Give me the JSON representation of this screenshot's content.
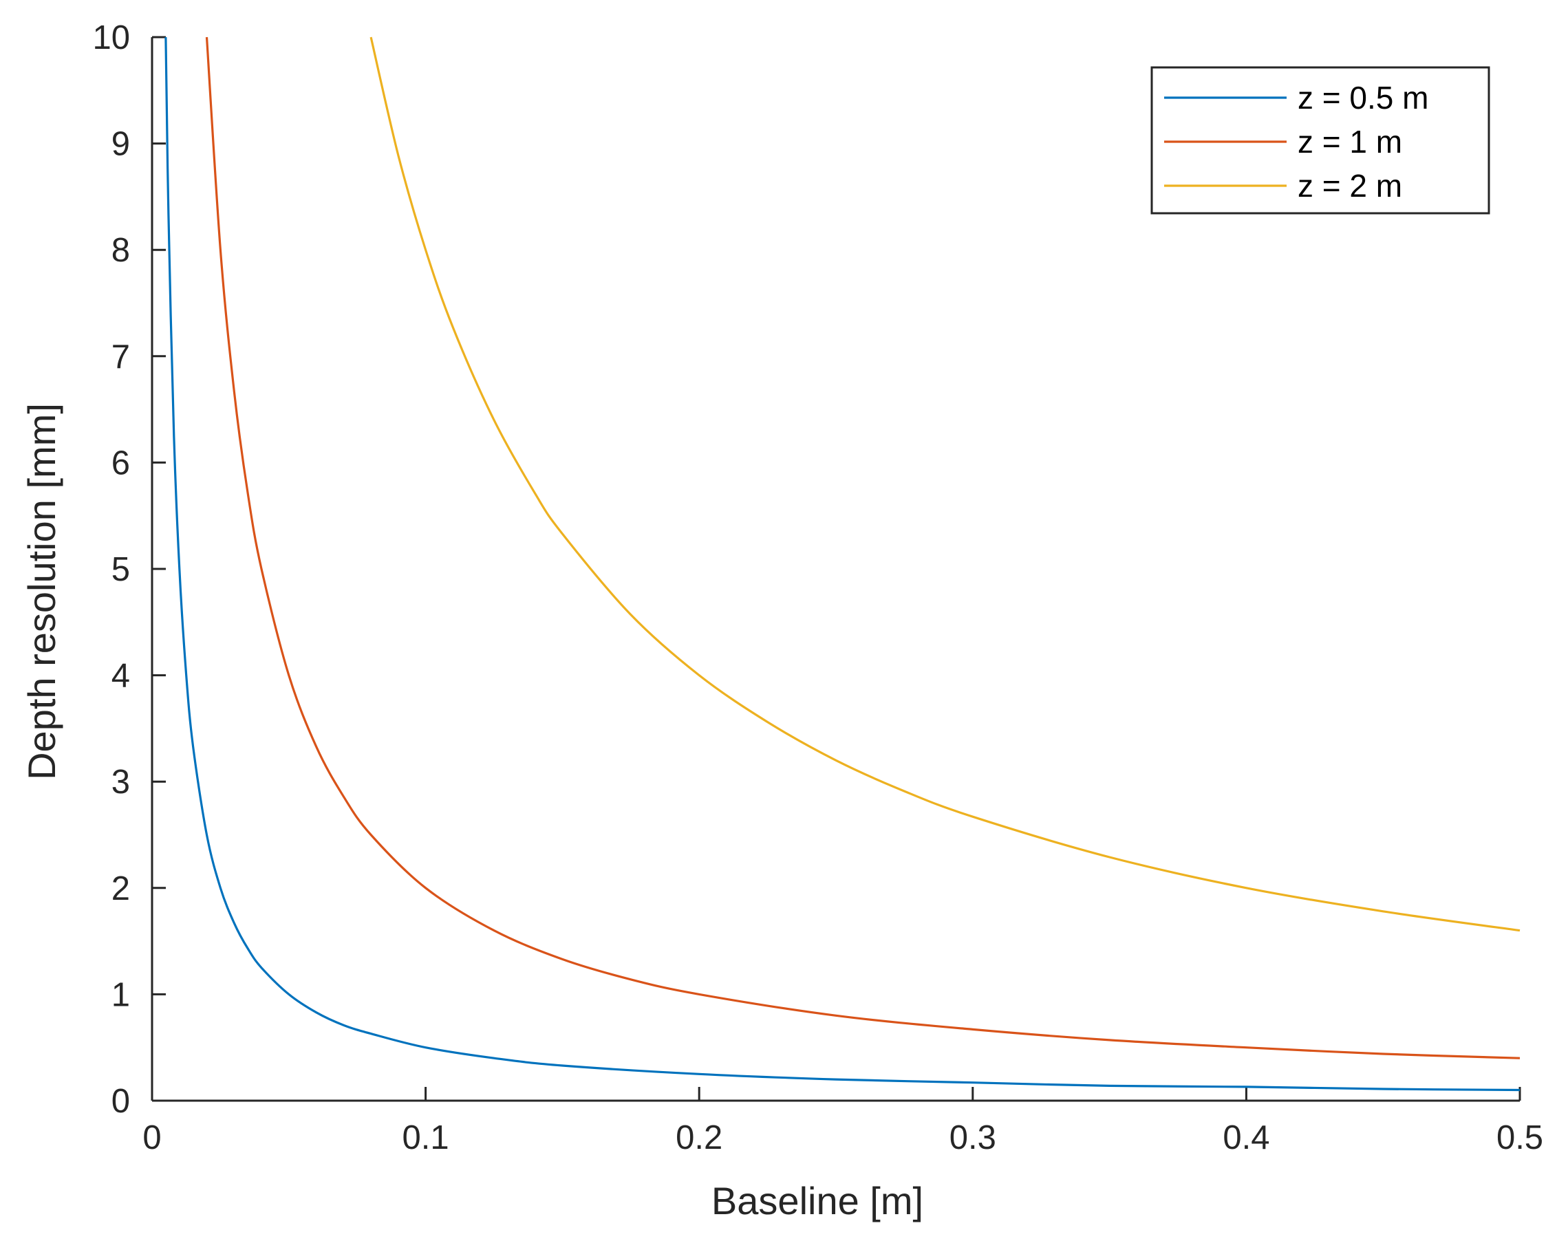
{
  "chart_data": {
    "type": "line",
    "title": "",
    "xlabel": "Baseline [m]",
    "ylabel": "Depth resolution [mm]",
    "xlim": [
      0,
      0.5
    ],
    "ylim": [
      0,
      10
    ],
    "xticks": [
      0,
      0.1,
      0.2,
      0.3,
      0.4,
      0.5
    ],
    "xtick_labels": [
      "0",
      "0.1",
      "0.2",
      "0.3",
      "0.4",
      "0.5"
    ],
    "yticks": [
      0,
      1,
      2,
      3,
      4,
      5,
      6,
      7,
      8,
      9,
      10
    ],
    "ytick_labels": [
      "0",
      "1",
      "2",
      "3",
      "4",
      "5",
      "6",
      "7",
      "8",
      "9",
      "10"
    ],
    "grid": false,
    "legend_position": "top-right",
    "series": [
      {
        "name": "z = 0.5 m",
        "color": "#0072BD",
        "x": [
          0.005,
          0.006,
          0.008,
          0.01,
          0.0125,
          0.015,
          0.02,
          0.025,
          0.03,
          0.035,
          0.04,
          0.05,
          0.06,
          0.07,
          0.08,
          0.1,
          0.125,
          0.15,
          0.2,
          0.25,
          0.3,
          0.35,
          0.4,
          0.45,
          0.5
        ],
        "y": [
          10,
          8.33,
          6.25,
          5,
          4,
          3.33,
          2.5,
          2,
          1.67,
          1.43,
          1.25,
          1,
          0.83,
          0.71,
          0.63,
          0.5,
          0.4,
          0.33,
          0.25,
          0.2,
          0.17,
          0.14,
          0.13,
          0.11,
          0.1
        ]
      },
      {
        "name": "z = 1 m",
        "color": "#D95319",
        "x": [
          0.02,
          0.025,
          0.03,
          0.035,
          0.04,
          0.05,
          0.06,
          0.07,
          0.08,
          0.1,
          0.125,
          0.15,
          0.175,
          0.2,
          0.25,
          0.3,
          0.35,
          0.4,
          0.45,
          0.5
        ],
        "y": [
          10,
          8,
          6.67,
          5.71,
          5,
          4,
          3.33,
          2.86,
          2.5,
          2,
          1.6,
          1.33,
          1.14,
          1,
          0.8,
          0.67,
          0.57,
          0.5,
          0.44,
          0.4
        ]
      },
      {
        "name": "z = 2 m",
        "color": "#EDB120",
        "x": [
          0.08,
          0.09,
          0.1,
          0.11,
          0.125,
          0.14,
          0.15,
          0.175,
          0.2,
          0.225,
          0.25,
          0.275,
          0.3,
          0.35,
          0.4,
          0.45,
          0.5
        ],
        "y": [
          10,
          8.89,
          8,
          7.27,
          6.4,
          5.71,
          5.33,
          4.57,
          4,
          3.56,
          3.2,
          2.91,
          2.67,
          2.29,
          2,
          1.78,
          1.6
        ]
      }
    ]
  }
}
